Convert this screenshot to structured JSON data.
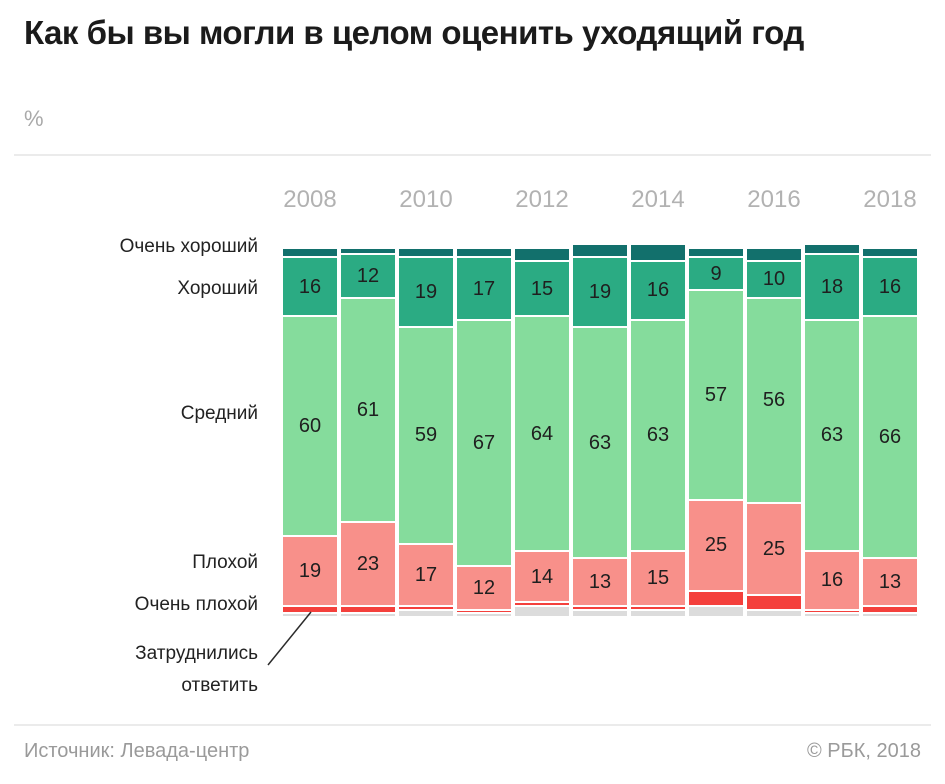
{
  "title": "Как бы вы могли в целом оценить уходящий год",
  "unit_label": "%",
  "footer": {
    "source": "Источник: Левада-центр",
    "copyright": "© РБК, 2018"
  },
  "colors": {
    "very_good": "#12706C",
    "good": "#2BAB83",
    "average": "#85DC9C",
    "bad": "#F8908A",
    "very_bad": "#F4403C",
    "difficult": "#DCDCDC",
    "title_text": "#1b1b1b",
    "muted_text": "#b2b2b2",
    "footer_text": "#9a9a9a"
  },
  "chart_data": {
    "type": "bar",
    "stacked": true,
    "percent_scale": true,
    "unit": "%",
    "x": [
      2008,
      2009,
      2010,
      2011,
      2012,
      2013,
      2014,
      2015,
      2016,
      2017,
      2018
    ],
    "x_axis_ticks": [
      "2008",
      "2010",
      "2012",
      "2014",
      "2016",
      "2018"
    ],
    "series": [
      {
        "key": "very-good",
        "name": "Очень хороший",
        "color": "#12706C",
        "show_value_labels": false,
        "values": [
          2,
          1,
          2,
          2,
          3,
          3,
          4,
          2,
          3,
          2,
          2
        ]
      },
      {
        "key": "good",
        "name": "Хороший",
        "color": "#2BAB83",
        "show_value_labels": true,
        "values": [
          16,
          12,
          19,
          17,
          15,
          19,
          16,
          9,
          10,
          18,
          16
        ]
      },
      {
        "key": "average",
        "name": "Средний",
        "color": "#85DC9C",
        "show_value_labels": true,
        "values": [
          60,
          61,
          59,
          67,
          64,
          63,
          63,
          57,
          56,
          63,
          66
        ]
      },
      {
        "key": "bad",
        "name": "Плохой",
        "color": "#F8908A",
        "show_value_labels": true,
        "values": [
          19,
          23,
          17,
          12,
          14,
          13,
          15,
          25,
          25,
          16,
          13
        ]
      },
      {
        "key": "very-bad",
        "name": "Очень плохой",
        "color": "#F4403C",
        "show_value_labels": false,
        "values": [
          2,
          2,
          1,
          1,
          1,
          1,
          1,
          4,
          4,
          1,
          2
        ]
      },
      {
        "key": "difficult",
        "name": "Затруднились ответить",
        "color": "#DCDCDC",
        "show_value_labels": false,
        "values": [
          1,
          1,
          2,
          1,
          3,
          2,
          2,
          3,
          2,
          1,
          1
        ]
      }
    ],
    "legend_position": "left-axis",
    "grid": false
  }
}
